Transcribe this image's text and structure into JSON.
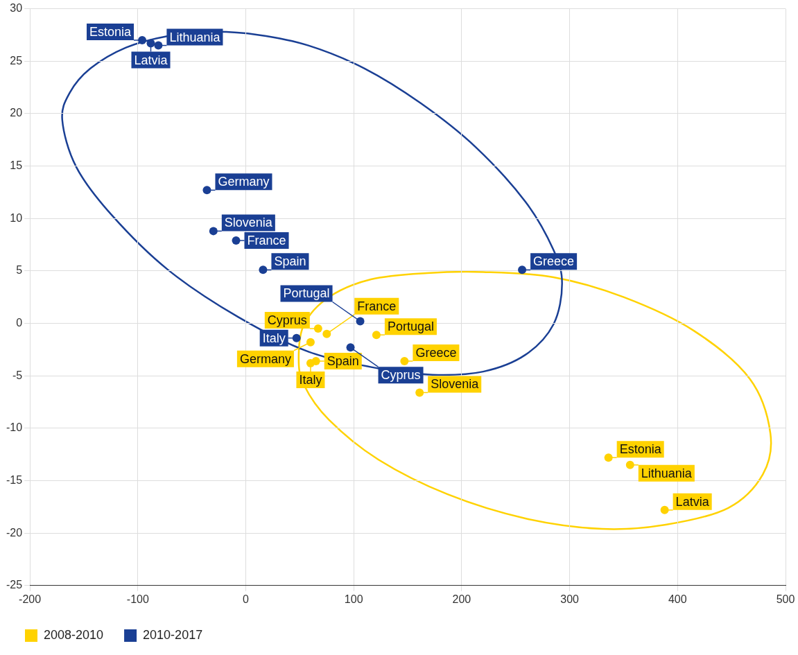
{
  "chart_data": {
    "type": "scatter",
    "xlim": [
      -200,
      500
    ],
    "xticks": [
      -200,
      -100,
      0,
      100,
      200,
      300,
      400,
      500
    ],
    "ylim": [
      -25,
      30
    ],
    "yticks": [
      -25,
      -20,
      -15,
      -10,
      -5,
      0,
      5,
      10,
      15,
      20,
      25,
      30
    ],
    "grid": true,
    "legend": "bottom left",
    "marker": "circle",
    "series": [
      {
        "name": "2008-2010",
        "color": "#ffd200",
        "x": [
          67,
          75,
          60,
          60,
          65,
          121,
          147,
          161,
          336,
          356,
          388
        ],
        "values": [
          -0.5,
          -1.0,
          -1.8,
          -3.8,
          -3.6,
          -1.1,
          -3.6,
          -6.6,
          -12.8,
          -13.5,
          -17.8
        ],
        "value_labels": [
          "Cyprus",
          "France",
          "Germany",
          "Italy",
          "Spain",
          "Portugal",
          "Greece",
          "Slovenia",
          "Estonia",
          "Lithuania",
          "Latvia"
        ]
      },
      {
        "name": "2010-2017",
        "color": "#1a3f94",
        "x": [
          -96,
          -88,
          -81,
          -36,
          -30,
          -9,
          16,
          47,
          106,
          97,
          256
        ],
        "values": [
          27.0,
          26.7,
          26.5,
          12.7,
          8.8,
          7.9,
          5.1,
          -1.4,
          0.2,
          -2.3,
          5.1
        ],
        "value_labels": [
          "Estonia",
          "Latvia",
          "Lithuania",
          "Germany",
          "Slovenia",
          "France",
          "Spain",
          "Italy",
          "Portugal",
          "Cyprus",
          "Greece"
        ]
      }
    ]
  }
}
